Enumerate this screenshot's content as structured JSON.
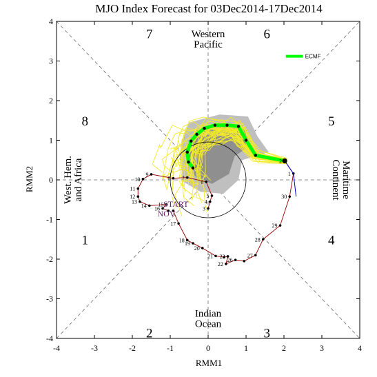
{
  "chart_data": {
    "type": "line",
    "title": "MJO Index Forecast for 03Dec2014-17Dec2014",
    "xlabel": "RMM1",
    "ylabel": "RMM2",
    "xlim": [
      -4,
      4
    ],
    "ylim": [
      -4,
      4
    ],
    "xticks": [
      "-4",
      "-3",
      "-2",
      "-1",
      "0",
      "1",
      "2",
      "3",
      "4"
    ],
    "yticks": [
      "-4",
      "-3",
      "-2",
      "-1",
      "0",
      "1",
      "2",
      "3",
      "4"
    ],
    "phases": [
      {
        "label": "1",
        "x": -3.25,
        "y": -1.5
      },
      {
        "label": "2",
        "x": -1.55,
        "y": -3.85
      },
      {
        "label": "3",
        "x": 1.55,
        "y": -3.85
      },
      {
        "label": "4",
        "x": 3.25,
        "y": -1.5
      },
      {
        "label": "5",
        "x": 3.25,
        "y": 1.5
      },
      {
        "label": "6",
        "x": 1.55,
        "y": 3.7
      },
      {
        "label": "7",
        "x": -1.55,
        "y": 3.7
      },
      {
        "label": "8",
        "x": -3.25,
        "y": 1.5
      }
    ],
    "regions": {
      "top": [
        "Western",
        "Pacific"
      ],
      "bottom": [
        "Indian",
        "Ocean"
      ],
      "left": [
        "West. Hem.",
        "and Africa"
      ],
      "right": [
        "Maritime",
        "Continent"
      ]
    },
    "start_label": "START",
    "start_sublabel": "NOV",
    "legend": [
      {
        "name": "ECMF",
        "color": "#00ff00"
      }
    ],
    "observed": {
      "color": "#a01010",
      "points": [
        {
          "label": "",
          "x": -0.92,
          "y": -0.78
        },
        {
          "label": "17",
          "x": -0.78,
          "y": -1.1
        },
        {
          "label": "18",
          "x": -0.55,
          "y": -1.52
        },
        {
          "label": "19",
          "x": -0.4,
          "y": -1.6
        },
        {
          "label": "20",
          "x": -0.15,
          "y": -1.72
        },
        {
          "label": "21",
          "x": 0.2,
          "y": -1.92
        },
        {
          "label": "",
          "x": 0.42,
          "y": -1.95
        },
        {
          "label": "23",
          "x": 0.52,
          "y": -1.93
        },
        {
          "label": "22",
          "x": 0.47,
          "y": -2.12
        },
        {
          "label": "26",
          "x": 0.72,
          "y": -2.02
        },
        {
          "label": "",
          "x": 0.95,
          "y": -2.05
        },
        {
          "label": "27",
          "x": 1.25,
          "y": -1.9
        },
        {
          "label": "28",
          "x": 1.45,
          "y": -1.5
        },
        {
          "label": "29",
          "x": 1.9,
          "y": -1.15
        },
        {
          "label": "30",
          "x": 2.15,
          "y": -0.42
        },
        {
          "label": "1",
          "x": 2.25,
          "y": 0.16
        },
        {
          "label": "2",
          "x": 2.02,
          "y": 0.48
        }
      ]
    },
    "observed_late": {
      "color": "#a01010",
      "points": [
        {
          "label": "",
          "x": -1.05,
          "y": -0.78
        },
        {
          "label": "16",
          "x": -1.2,
          "y": -0.72
        },
        {
          "label": "15",
          "x": -1.1,
          "y": -0.62
        },
        {
          "label": "14",
          "x": -1.55,
          "y": -0.65
        },
        {
          "label": "13",
          "x": -1.8,
          "y": -0.55
        },
        {
          "label": "12",
          "x": -1.85,
          "y": -0.42
        },
        {
          "label": "11",
          "x": -1.85,
          "y": -0.22
        },
        {
          "label": "10",
          "x": -1.72,
          "y": 0.02
        },
        {
          "label": "9",
          "x": -1.5,
          "y": 0.14
        },
        {
          "label": "8",
          "x": -0.92,
          "y": 0.04
        },
        {
          "label": "7",
          "x": -0.55,
          "y": 0.06
        },
        {
          "label": "6",
          "x": -0.05,
          "y": -0.05
        },
        {
          "label": "5",
          "x": 0.1,
          "y": -0.4
        },
        {
          "label": "4",
          "x": 0.05,
          "y": -0.55
        },
        {
          "label": "3",
          "x": 0.0,
          "y": -0.72
        }
      ]
    },
    "observed_blue": {
      "color": "#0000cc",
      "points": [
        {
          "x": 2.02,
          "y": 0.48
        },
        {
          "x": 2.25,
          "y": 0.16
        },
        {
          "x": 2.32,
          "y": -0.42
        }
      ]
    },
    "ensemble_mean": {
      "name": "ECMF",
      "color": "#00ff00",
      "points": [
        {
          "x": 2.02,
          "y": 0.48
        },
        {
          "x": 1.25,
          "y": 0.62
        },
        {
          "x": 1.0,
          "y": 1.0
        },
        {
          "x": 0.8,
          "y": 1.35
        },
        {
          "x": 0.5,
          "y": 1.38
        },
        {
          "x": 0.18,
          "y": 1.38
        },
        {
          "x": -0.1,
          "y": 1.3
        },
        {
          "x": -0.3,
          "y": 1.15
        },
        {
          "x": -0.45,
          "y": 0.98
        },
        {
          "x": -0.55,
          "y": 0.7
        },
        {
          "x": -0.52,
          "y": 0.45
        },
        {
          "x": -0.4,
          "y": 0.3
        }
      ]
    }
  }
}
